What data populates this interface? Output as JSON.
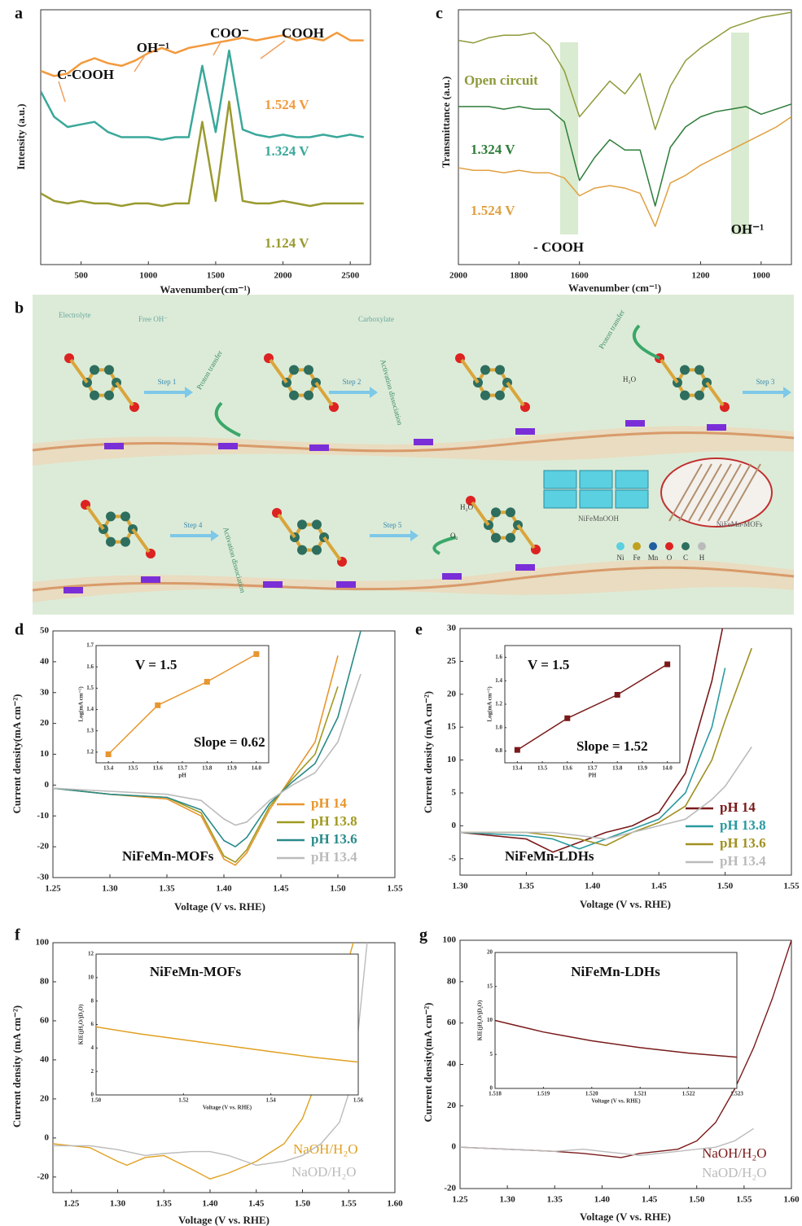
{
  "chart_data": [
    {
      "type": "line",
      "label": "a",
      "x_label": "Wavenumber(cm⁻¹)",
      "y_label": "Intensity (a.u.)",
      "x": [
        200,
        300,
        400,
        500,
        600,
        700,
        800,
        900,
        1000,
        1100,
        1200,
        1300,
        1400,
        1500,
        1600,
        1700,
        1800,
        1900,
        2000,
        2100,
        2200,
        2300,
        2400,
        2500,
        2600
      ],
      "xlim": [
        200,
        2650
      ],
      "xticks": [
        500,
        1000,
        1500,
        2000,
        2500
      ],
      "ylim": [
        0,
        10
      ],
      "series": [
        {
          "name": "1.524 V",
          "color": "#f39a3c",
          "values": [
            7.6,
            7.4,
            7.5,
            7.9,
            8.1,
            7.9,
            7.8,
            8.0,
            8.3,
            8.5,
            8.3,
            8.5,
            8.6,
            8.7,
            8.8,
            8.9,
            8.8,
            8.9,
            9.0,
            8.8,
            8.9,
            8.8,
            9.1,
            8.8,
            8.8
          ]
        },
        {
          "name": "1.324 V",
          "color": "#3aa89a",
          "values": [
            6.8,
            5.8,
            5.4,
            5.5,
            5.6,
            5.2,
            5.0,
            5.0,
            5.0,
            4.9,
            5.0,
            5.0,
            7.8,
            5.2,
            8.4,
            5.3,
            5.1,
            5.0,
            5.1,
            5.0,
            5.0,
            5.1,
            5.0,
            5.1,
            5.0
          ]
        },
        {
          "name": "1.124 V",
          "color": "#9a9a30",
          "values": [
            2.8,
            2.5,
            2.4,
            2.5,
            2.4,
            2.4,
            2.3,
            2.4,
            2.4,
            2.3,
            2.4,
            2.4,
            5.6,
            2.5,
            6.4,
            2.5,
            2.4,
            2.4,
            2.5,
            2.4,
            2.3,
            2.4,
            2.4,
            2.4,
            2.4
          ]
        }
      ],
      "annotations": [
        "C-COOH",
        "OH⁻¹",
        "COO⁻",
        "COOH"
      ]
    },
    {
      "type": "line",
      "label": "c",
      "x_label": "Wavenumber (cm⁻¹)",
      "y_label": "Transmittance (a.u.)",
      "x": [
        2000,
        1950,
        1900,
        1850,
        1800,
        1750,
        1700,
        1650,
        1600,
        1550,
        1500,
        1450,
        1400,
        1350,
        1300,
        1250,
        1200,
        1150,
        1100,
        1050,
        1000,
        950,
        900
      ],
      "xlim": [
        2000,
        900
      ],
      "xticks": [
        2000,
        1800,
        1600,
        1200,
        1000
      ],
      "ylim": [
        0,
        10
      ],
      "series": [
        {
          "name": "Open circuit",
          "color": "#8f9a3a",
          "values": [
            8.8,
            8.7,
            8.9,
            9.0,
            9.0,
            9.1,
            8.6,
            7.6,
            5.8,
            6.5,
            7.2,
            6.7,
            7.5,
            5.3,
            7.0,
            8.0,
            8.5,
            8.9,
            9.3,
            9.5,
            9.7,
            9.8,
            9.9
          ]
        },
        {
          "name": "1.324 V",
          "color": "#2e7d3a",
          "values": [
            6.2,
            6.2,
            6.2,
            6.1,
            6.2,
            6.1,
            6.1,
            5.6,
            3.3,
            4.2,
            4.9,
            4.5,
            4.5,
            2.3,
            4.6,
            5.4,
            5.8,
            6.0,
            6.1,
            6.2,
            5.9,
            6.1,
            6.3
          ]
        },
        {
          "name": "1.524 V",
          "color": "#e0a040",
          "values": [
            3.8,
            3.7,
            3.7,
            3.6,
            3.7,
            3.6,
            3.6,
            3.4,
            2.7,
            3.0,
            3.1,
            3.0,
            2.8,
            1.5,
            3.2,
            3.5,
            3.9,
            4.2,
            4.5,
            4.8,
            5.1,
            5.4,
            5.8
          ]
        }
      ],
      "annotations": [
        "- COOH",
        "OH⁻¹"
      ]
    },
    {
      "type": "line",
      "label": "d",
      "x_label": "Voltage (V vs. RHE)",
      "y_label": "Current density(mA cm⁻²)",
      "x": [
        1.25,
        1.3,
        1.35,
        1.38,
        1.4,
        1.41,
        1.42,
        1.44,
        1.46,
        1.48,
        1.5,
        1.52
      ],
      "xlim": [
        1.25,
        1.55
      ],
      "xticks": [
        1.25,
        {
          "value": 1.3,
          "label": "1.30"
        },
        1.35,
        {
          "value": 1.4,
          "label": "1.40"
        },
        1.45,
        {
          "value": 1.5,
          "label": "1.50"
        },
        1.55
      ],
      "ylim": [
        -30,
        50
      ],
      "yticks": [
        -30,
        -20,
        -10,
        0,
        10,
        20,
        30,
        40,
        50
      ],
      "series": [
        {
          "name": "pH  14",
          "color": "#e8962e",
          "values": [
            -1,
            -3,
            -4.5,
            -10,
            -24,
            -26,
            -22,
            -8,
            3,
            14,
            42,
            null
          ]
        },
        {
          "name": "pH  13.8",
          "color": "#a09a20",
          "values": [
            -1,
            -3,
            -4,
            -9,
            -23,
            -25,
            -21,
            -7,
            2,
            10,
            32,
            null
          ]
        },
        {
          "name": "pH  13.6",
          "color": "#2a8a8a",
          "values": [
            -1,
            -3,
            -4,
            -8,
            -18,
            -20,
            -17,
            -6,
            1,
            7,
            22,
            50
          ]
        },
        {
          "name": "pH  13.4",
          "color": "#bbbbbb",
          "values": [
            -1,
            -2,
            -3,
            -5,
            -11,
            -13,
            -12,
            -5,
            0,
            4,
            14,
            36
          ]
        }
      ],
      "annotations": [
        "NiFeMn-MOFs"
      ],
      "inset": {
        "type": "scatter",
        "color": "#e8962e",
        "x_label": "pH",
        "y_label": "Log(mA cm⁻²)",
        "x": [
          13.4,
          13.6,
          13.8,
          14.0
        ],
        "values": [
          1.19,
          1.42,
          1.53,
          1.66
        ],
        "xlim": [
          13.35,
          14.05
        ],
        "xticks": [
          13.4,
          13.5,
          13.6,
          13.7,
          13.8,
          13.9,
          {
            "value": 14,
            "label": "14.0"
          }
        ],
        "ylim": [
          1.15,
          1.7
        ],
        "yticks": [
          1.2,
          1.3,
          1.4,
          1.5,
          1.6,
          1.7
        ],
        "annotations": [
          "V = 1.5",
          "Slope = 0.62"
        ]
      }
    },
    {
      "type": "line",
      "label": "e",
      "x_label": "Voltage (V vs. RHE)",
      "y_label": "Current density (mA cm⁻²)",
      "x": [
        1.3,
        1.35,
        1.37,
        1.39,
        1.41,
        1.43,
        1.45,
        1.47,
        1.49,
        1.5,
        1.52
      ],
      "xlim": [
        1.3,
        1.55
      ],
      "xticks": [
        {
          "value": 1.3,
          "label": "1.30"
        },
        1.35,
        {
          "value": 1.4,
          "label": "1.40"
        },
        1.45,
        {
          "value": 1.5,
          "label": "1.50"
        },
        1.55
      ],
      "ylim": [
        -7.5,
        30
      ],
      "yticks": [
        -5,
        0,
        5,
        10,
        15,
        20,
        25,
        30
      ],
      "series": [
        {
          "name": "pH  14",
          "color": "#7a1a1a",
          "values": [
            -1,
            -2,
            -4,
            -2.5,
            -1,
            0,
            2,
            8,
            22,
            32,
            null
          ]
        },
        {
          "name": "pH  13.8",
          "color": "#2a9aa0",
          "values": [
            -1,
            -1.5,
            -2,
            -3.5,
            -2,
            -0.5,
            1,
            5,
            15,
            24,
            null
          ]
        },
        {
          "name": "pH  13.6",
          "color": "#a09020",
          "values": [
            -1,
            -1,
            -1.5,
            -2,
            -3,
            -1,
            0.5,
            3,
            10,
            16,
            27
          ]
        },
        {
          "name": "pH  13.4",
          "color": "#bbbbbb",
          "values": [
            -1,
            -1,
            -1,
            -1.5,
            -2,
            -1,
            0,
            1,
            4,
            6,
            12
          ]
        }
      ],
      "annotations": [
        "NiFeMn-LDHs"
      ],
      "inset": {
        "type": "scatter",
        "color": "#7a1a1a",
        "x_label": "PH",
        "y_label": "Log(mA cm⁻²)",
        "x": [
          13.4,
          13.6,
          13.8,
          14.0
        ],
        "values": [
          0.81,
          1.08,
          1.28,
          1.54
        ],
        "xlim": [
          13.35,
          14.05
        ],
        "xticks": [
          13.4,
          13.5,
          13.6,
          13.7,
          13.8,
          13.9,
          {
            "value": 14,
            "label": "14.0"
          }
        ],
        "ylim": [
          0.7,
          1.7
        ],
        "yticks": [
          0.8,
          {
            "value": 1,
            "label": "1.0"
          },
          1.2,
          1.4,
          1.6
        ],
        "annotations": [
          "V = 1.5",
          "Slope = 1.52"
        ]
      }
    },
    {
      "type": "line",
      "label": "f",
      "x_label": "Voltage (V vs. RHE)",
      "y_label": "Current density (mA cm⁻²)",
      "x": [
        1.23,
        1.27,
        1.3,
        1.31,
        1.33,
        1.35,
        1.38,
        1.4,
        1.42,
        1.45,
        1.48,
        1.5,
        1.52,
        1.54,
        1.555,
        1.57
      ],
      "xlim": [
        1.23,
        1.6
      ],
      "xticks": [
        1.25,
        {
          "value": 1.3,
          "label": "1.30"
        },
        1.35,
        {
          "value": 1.4,
          "label": "1.40"
        },
        1.45,
        {
          "value": 1.5,
          "label": "1.50"
        },
        1.55,
        {
          "value": 1.6,
          "label": "1.60"
        }
      ],
      "ylim": [
        -28,
        100
      ],
      "yticks": [
        -20,
        0,
        20,
        40,
        60,
        80,
        100
      ],
      "series": [
        {
          "name": "NaOH/H₂O",
          "color": "#e0a020",
          "values": [
            -3,
            -5,
            -12,
            -14,
            -10,
            -9,
            -16,
            -21,
            -18,
            -12,
            -3,
            10,
            35,
            75,
            100,
            null
          ]
        },
        {
          "name": "NaOD/H₂O",
          "color": "#bbbbbb",
          "values": [
            -4,
            -4,
            -6,
            -7,
            -9,
            -8,
            -7,
            -7,
            -9,
            -14,
            -12,
            -9,
            -3,
            8,
            30,
            100
          ]
        }
      ],
      "inset": {
        "type": "line",
        "color": "#e0a020",
        "title": "NiFeMn-MOFs",
        "x_label": "Voltage (V vs. RHE)",
        "y_label": "KIE(jH₂O/jD₂O)",
        "x": [
          1.5,
          1.51,
          1.52,
          1.53,
          1.54,
          1.55,
          1.56
        ],
        "values": [
          5.8,
          5.2,
          4.7,
          4.2,
          3.7,
          3.2,
          2.8
        ],
        "xlim": [
          1.5,
          1.56
        ],
        "xticks": [
          {
            "value": 1.5,
            "label": "1.50"
          },
          1.52,
          1.54,
          1.56
        ],
        "ylim": [
          0,
          12
        ],
        "yticks": [
          0,
          2,
          4,
          6,
          8,
          10,
          12
        ]
      }
    },
    {
      "type": "line",
      "label": "g",
      "x_label": "Voltage (V vs. RHE)",
      "y_label": "Current density(mA cm⁻²)",
      "x": [
        1.25,
        1.3,
        1.35,
        1.38,
        1.4,
        1.42,
        1.44,
        1.46,
        1.48,
        1.5,
        1.52,
        1.54,
        1.56,
        1.58,
        1.6
      ],
      "xlim": [
        1.25,
        1.6
      ],
      "xticks": [
        1.25,
        {
          "value": 1.3,
          "label": "1.30"
        },
        1.35,
        {
          "value": 1.4,
          "label": "1.40"
        },
        1.45,
        {
          "value": 1.5,
          "label": "1.50"
        },
        1.55,
        {
          "value": 1.6,
          "label": "1.60"
        }
      ],
      "ylim": [
        -20,
        100
      ],
      "yticks": [
        -20,
        0,
        20,
        40,
        60,
        80,
        100
      ],
      "series": [
        {
          "name": "NaOH/H₂O",
          "color": "#7a1a1a",
          "values": [
            0,
            -1,
            -2,
            -3,
            -4,
            -5,
            -3,
            -2,
            -1,
            3,
            12,
            28,
            48,
            72,
            100
          ]
        },
        {
          "name": "NaOD/H₂O",
          "color": "#bbbbbb",
          "values": [
            0,
            -1,
            -2,
            -1,
            -2,
            -3,
            -4,
            -3,
            -2,
            -1,
            0,
            3,
            9,
            null,
            null
          ]
        }
      ],
      "inset": {
        "type": "line",
        "color": "#7a1a1a",
        "title": "NiFeMn-LDHs",
        "x_label": "Voltage (V vs. RHE)",
        "y_label": "KIE(jH₂O/jD₂O)",
        "x": [
          1.518,
          1.519,
          1.52,
          1.521,
          1.522,
          1.523
        ],
        "values": [
          10,
          8.3,
          7,
          6,
          5.2,
          4.6
        ],
        "xlim": [
          1.518,
          1.523
        ],
        "xticks": [
          1.518,
          1.519,
          {
            "value": 1.52,
            "label": "1.520"
          },
          1.521,
          1.522,
          1.523
        ],
        "ylim": [
          0,
          20
        ],
        "yticks": [
          0,
          5,
          10,
          15,
          20
        ]
      }
    }
  ],
  "diagram": {
    "label": "b",
    "legend_top": [
      "Electrolyte",
      "Free OH⁻",
      "Carboxylate"
    ],
    "steps": [
      "Step 1",
      "Step 2",
      "Step 3",
      "Step 4",
      "Step 5"
    ],
    "processes": [
      "Proton transfer",
      "Activation dissociation",
      "Proton transfer",
      "Activation dissociation"
    ],
    "species": [
      "H₂O",
      "H₂O",
      "O₂"
    ],
    "materials": [
      "NiFeMnOOH",
      "NiFeMn-MOFs"
    ],
    "elements": [
      "Ni",
      "Fe",
      "Mn",
      "O",
      "C",
      "H"
    ]
  }
}
